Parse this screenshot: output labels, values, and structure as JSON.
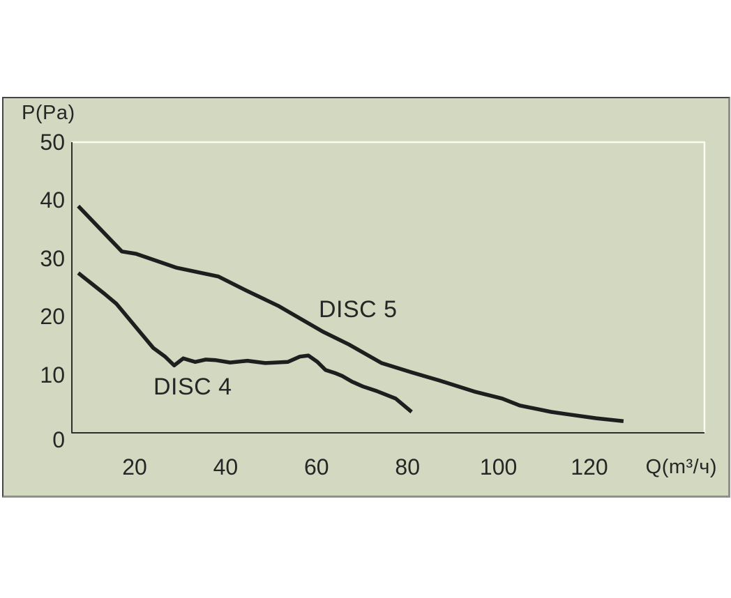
{
  "colors": {
    "page_background": "#ffffff",
    "panel_background": "#d3d8c0",
    "frame_dark": "#454545",
    "frame_light": "#8f9089",
    "axis_line": "#2d2d2d",
    "plot_border_light": "#fbfbf1",
    "text": "#262626"
  },
  "chart_data": {
    "type": "line",
    "xlabel": "Q(m³/ч)",
    "ylabel": "P(Pa)",
    "x_ticks": [
      20,
      40,
      60,
      80,
      100,
      120
    ],
    "y_ticks": [
      0,
      10,
      20,
      30,
      40,
      50
    ],
    "xlim": [
      6.2,
      145.3
    ],
    "ylim": [
      0,
      50
    ],
    "grid": false,
    "legend_position": "inline-curve-labels",
    "curve_color": "#1e1e1e",
    "series": [
      {
        "name": "DISC 5",
        "points": [
          [
            7.6,
            39.0
          ],
          [
            17.2,
            31.2
          ],
          [
            20.3,
            30.8
          ],
          [
            29.2,
            28.4
          ],
          [
            38.4,
            26.9
          ],
          [
            44.5,
            24.5
          ],
          [
            51.7,
            21.8
          ],
          [
            61.4,
            17.4
          ],
          [
            67.1,
            15.2
          ],
          [
            74.3,
            12.0
          ],
          [
            80.9,
            10.4
          ],
          [
            87.0,
            9.0
          ],
          [
            94.7,
            7.1
          ],
          [
            100.8,
            5.9
          ],
          [
            104.7,
            4.7
          ],
          [
            111.6,
            3.6
          ],
          [
            115.1,
            3.2
          ],
          [
            121.5,
            2.5
          ],
          [
            127.5,
            2.0
          ]
        ]
      },
      {
        "name": "DISC 4",
        "points": [
          [
            7.6,
            27.5
          ],
          [
            13.4,
            23.9
          ],
          [
            16.0,
            22.2
          ],
          [
            21.1,
            17.4
          ],
          [
            24.1,
            14.6
          ],
          [
            26.7,
            13.1
          ],
          [
            28.7,
            11.6
          ],
          [
            30.7,
            12.8
          ],
          [
            33.3,
            12.2
          ],
          [
            35.6,
            12.6
          ],
          [
            37.9,
            12.5
          ],
          [
            41.0,
            12.1
          ],
          [
            44.8,
            12.4
          ],
          [
            48.7,
            12.0
          ],
          [
            53.7,
            12.2
          ],
          [
            56.3,
            13.1
          ],
          [
            58.2,
            13.3
          ],
          [
            60.2,
            12.2
          ],
          [
            62.0,
            10.8
          ],
          [
            64.0,
            10.3
          ],
          [
            65.6,
            9.8
          ],
          [
            67.8,
            8.8
          ],
          [
            70.1,
            8.0
          ],
          [
            73.2,
            7.2
          ],
          [
            77.4,
            5.9
          ],
          [
            80.9,
            3.6
          ]
        ]
      }
    ]
  }
}
